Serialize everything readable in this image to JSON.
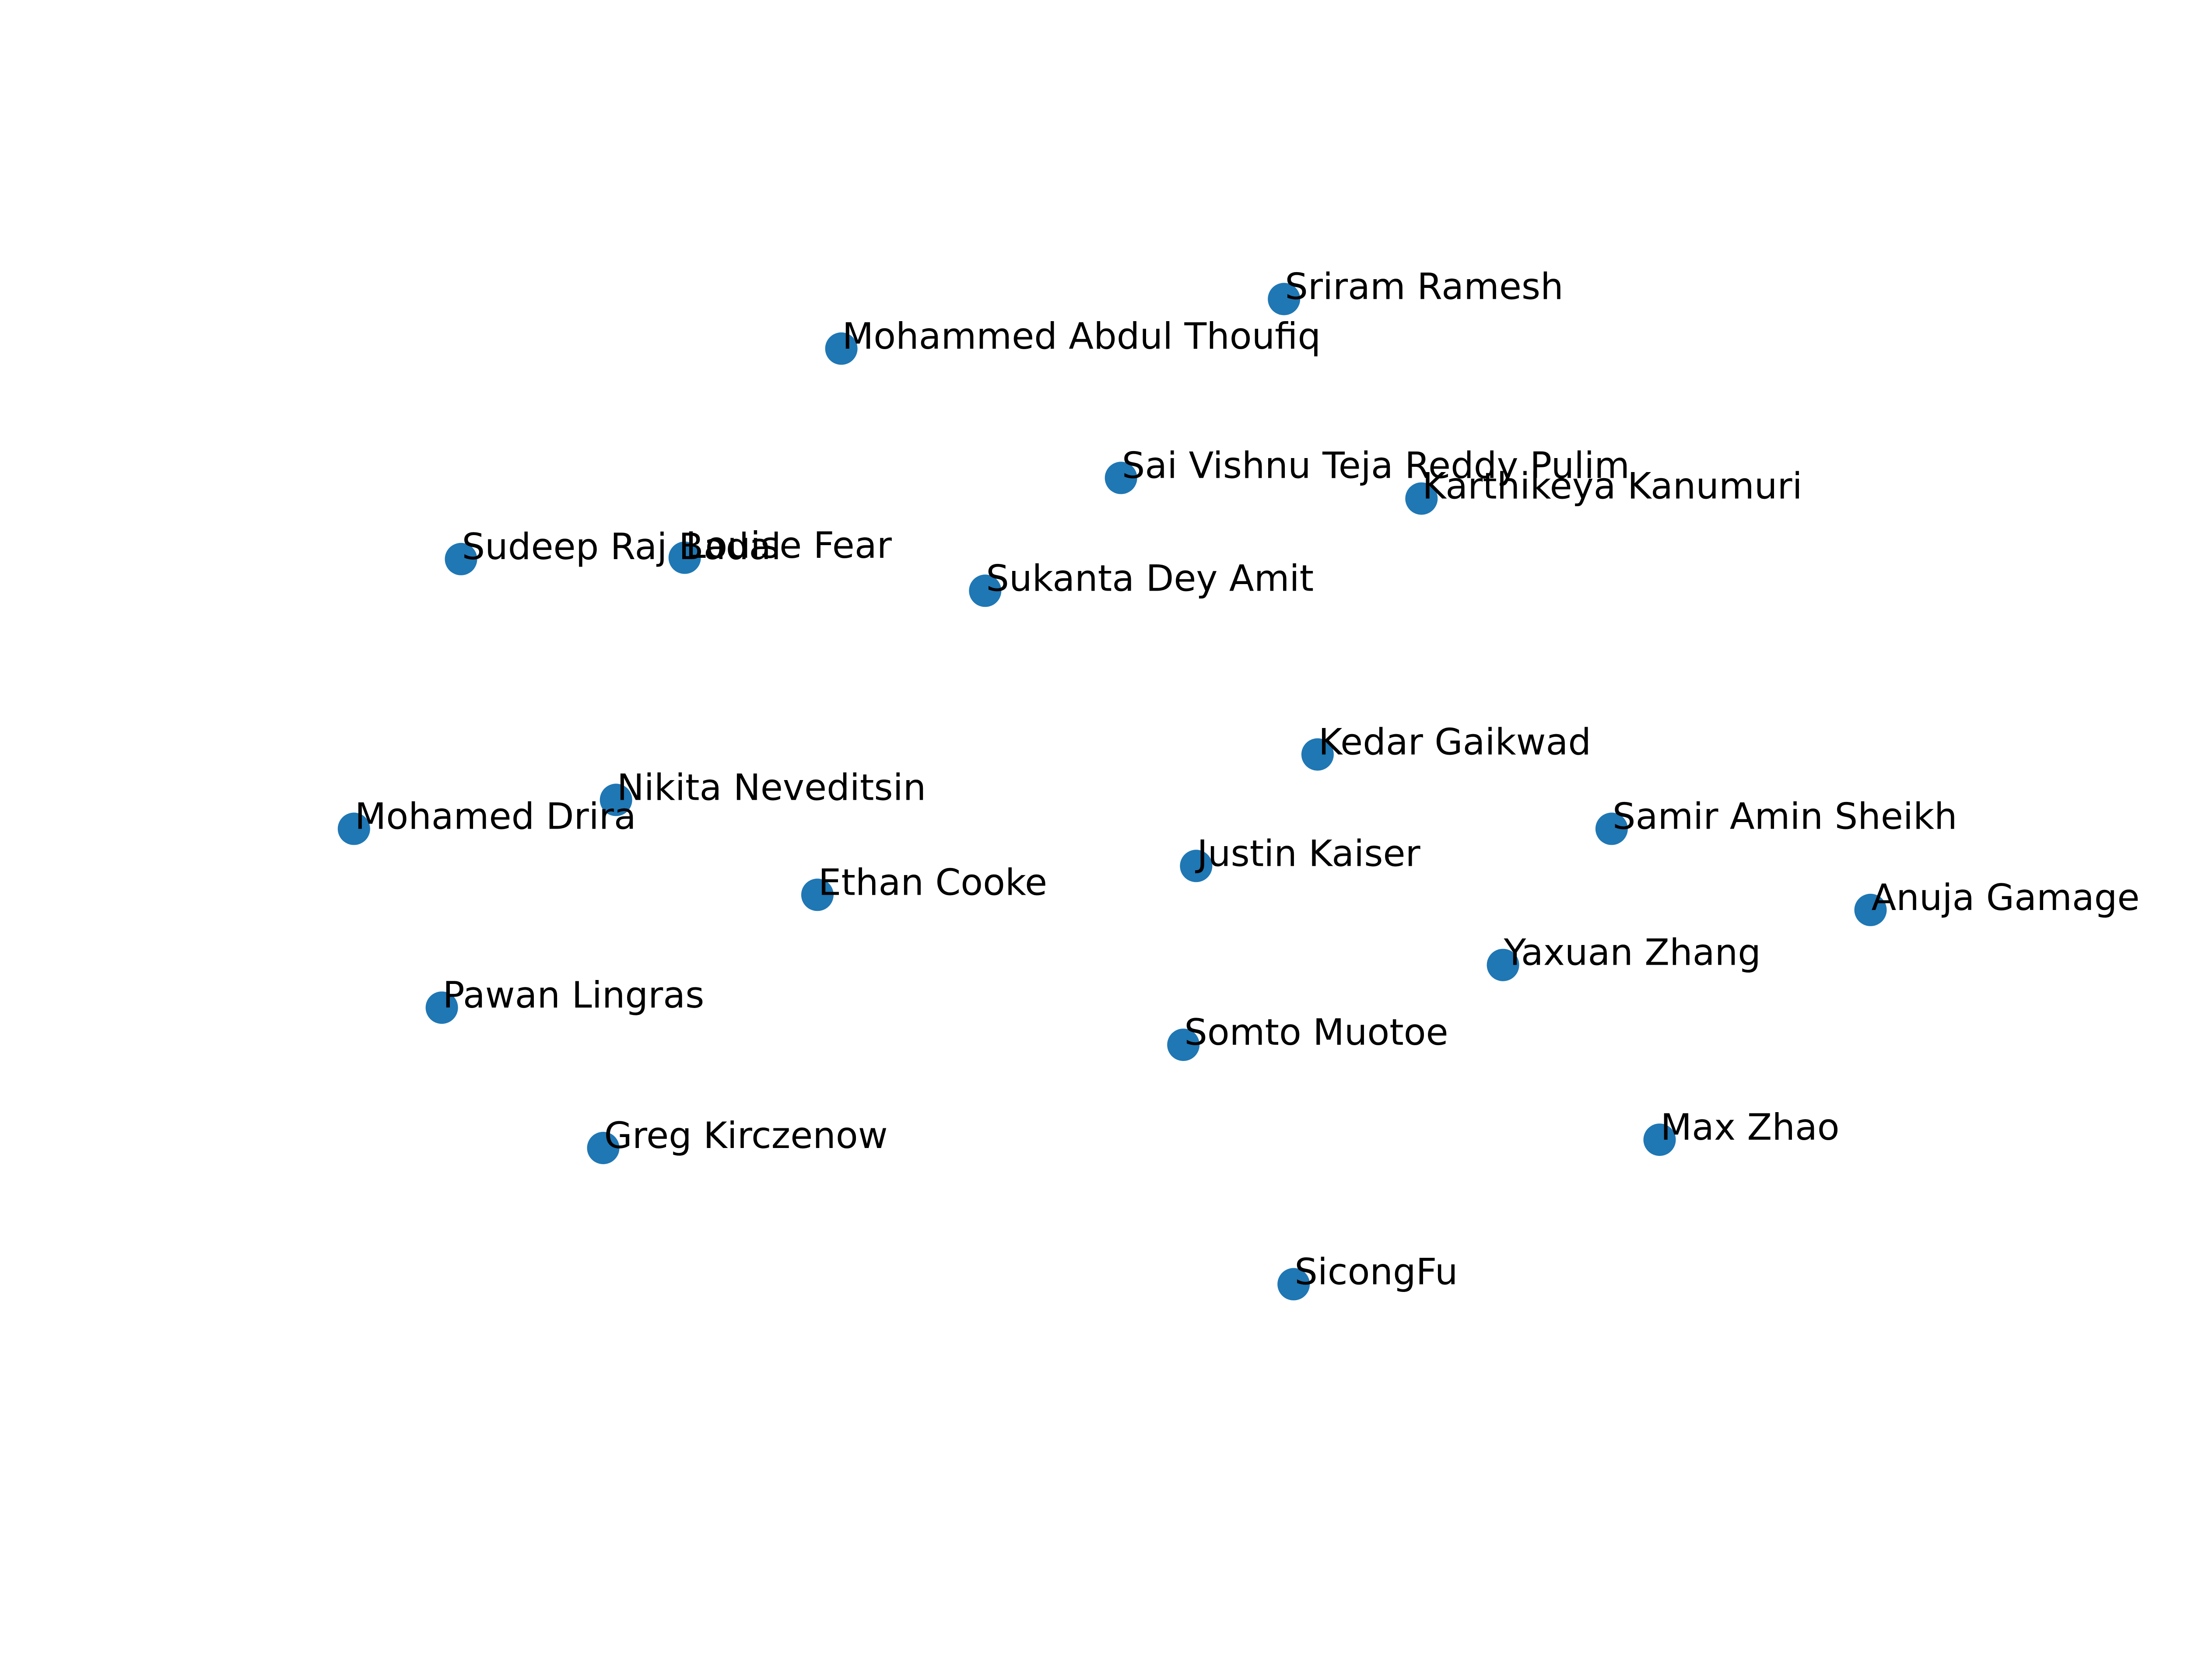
{
  "chart_data": {
    "type": "scatter",
    "axes_visible": false,
    "grid": false,
    "xlim": [
      0,
      1
    ],
    "ylim": [
      0,
      1
    ],
    "marker_color": "#1f77b4",
    "label_color": "#000000",
    "points": [
      {
        "label": "Sriram Ramesh",
        "x": 0.574,
        "y": 0.886
      },
      {
        "label": "Mohammed Abdul Thoufiq",
        "x": 0.297,
        "y": 0.85
      },
      {
        "label": "Sai Vishnu Teja Reddy Pulim",
        "x": 0.472,
        "y": 0.756
      },
      {
        "label": "Karthikeya Kanumuri",
        "x": 0.66,
        "y": 0.741
      },
      {
        "label": "Sudeep Raj Badal",
        "x": 0.059,
        "y": 0.697
      },
      {
        "label": "Louise Fear",
        "x": 0.199,
        "y": 0.698
      },
      {
        "label": "Sukanta Dey Amit",
        "x": 0.387,
        "y": 0.674
      },
      {
        "label": "Kedar Gaikwad",
        "x": 0.595,
        "y": 0.555
      },
      {
        "label": "Nikita Neveditsin",
        "x": 0.156,
        "y": 0.522
      },
      {
        "label": "Mohamed Drira",
        "x": -0.008,
        "y": 0.501
      },
      {
        "label": "Samir Amin Sheikh",
        "x": 0.779,
        "y": 0.501
      },
      {
        "label": "Justin Kaiser",
        "x": 0.519,
        "y": 0.474
      },
      {
        "label": "Ethan Cooke",
        "x": 0.282,
        "y": 0.453
      },
      {
        "label": "Anuja Gamage",
        "x": 0.941,
        "y": 0.442
      },
      {
        "label": "Yaxuan Zhang",
        "x": 0.711,
        "y": 0.402
      },
      {
        "label": "Pawan Lingras",
        "x": 0.047,
        "y": 0.371
      },
      {
        "label": "Somto Muotoe",
        "x": 0.511,
        "y": 0.344
      },
      {
        "label": "Max Zhao",
        "x": 0.809,
        "y": 0.275
      },
      {
        "label": "Greg Kirczenow",
        "x": 0.148,
        "y": 0.269
      },
      {
        "label": "SicongFu",
        "x": 0.58,
        "y": 0.17
      }
    ]
  }
}
